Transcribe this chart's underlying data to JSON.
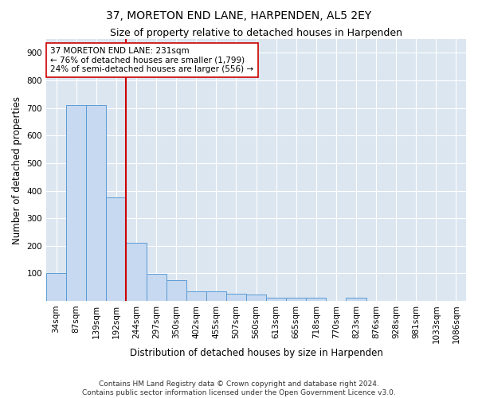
{
  "title": "37, MORETON END LANE, HARPENDEN, AL5 2EY",
  "subtitle": "Size of property relative to detached houses in Harpenden",
  "xlabel": "Distribution of detached houses by size in Harpenden",
  "ylabel": "Number of detached properties",
  "bar_labels": [
    "34sqm",
    "87sqm",
    "139sqm",
    "192sqm",
    "244sqm",
    "297sqm",
    "350sqm",
    "402sqm",
    "455sqm",
    "507sqm",
    "560sqm",
    "613sqm",
    "665sqm",
    "718sqm",
    "770sqm",
    "823sqm",
    "876sqm",
    "928sqm",
    "981sqm",
    "1033sqm",
    "1086sqm"
  ],
  "bar_values": [
    100,
    710,
    710,
    375,
    210,
    97,
    75,
    35,
    35,
    25,
    22,
    12,
    10,
    10,
    0,
    10,
    0,
    0,
    0,
    0,
    0
  ],
  "bar_color": "#c6d9f0",
  "bar_edgecolor": "#5b9bd5",
  "vline_color": "#cc0000",
  "annotation_text": "37 MORETON END LANE: 231sqm\n← 76% of detached houses are smaller (1,799)\n24% of semi-detached houses are larger (556) →",
  "annotation_box_edgecolor": "#cc0000",
  "annotation_box_facecolor": "#ffffff",
  "ylim": [
    0,
    950
  ],
  "yticks": [
    0,
    100,
    200,
    300,
    400,
    500,
    600,
    700,
    800,
    900
  ],
  "bg_color": "#dce6f1",
  "footer": "Contains HM Land Registry data © Crown copyright and database right 2024.\nContains public sector information licensed under the Open Government Licence v3.0.",
  "title_fontsize": 10,
  "subtitle_fontsize": 9,
  "xlabel_fontsize": 8.5,
  "ylabel_fontsize": 8.5,
  "tick_fontsize": 7.5,
  "footer_fontsize": 6.5
}
